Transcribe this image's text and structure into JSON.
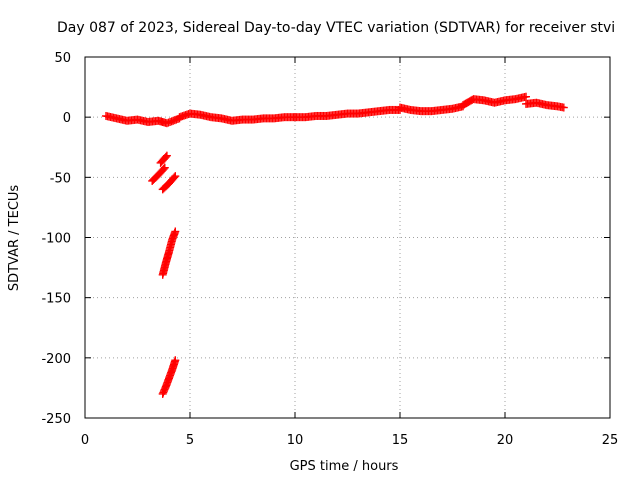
{
  "chart_data": {
    "type": "scatter",
    "title": "Day 087 of 2023, Sidereal Day-to-day VTEC variation (SDTVAR) for receiver stvi",
    "xlabel": "GPS time / hours",
    "ylabel": "SDTVAR / TECUs",
    "xlim": [
      0,
      25
    ],
    "ylim": [
      -250,
      50
    ],
    "x_ticks": [
      0,
      5,
      10,
      15,
      20,
      25
    ],
    "y_ticks": [
      50,
      0,
      -50,
      -100,
      -150,
      -200,
      -250
    ],
    "x_tick_labels": [
      "0",
      "5",
      "10",
      "15",
      "20",
      "25"
    ],
    "y_tick_labels": [
      "50",
      "0",
      "-50",
      "-100",
      "-150",
      "-200",
      "-250"
    ],
    "grid": true,
    "marker": "plus",
    "color": "#ff0000",
    "series": [
      {
        "segments": [
          {
            "x": [
              1.0,
              1.5,
              2.0,
              2.5,
              3.0,
              3.5,
              3.9,
              4.2,
              4.5
            ],
            "y": [
              1,
              -1,
              -3,
              -2,
              -4,
              -3,
              -5,
              -3,
              -1
            ]
          },
          {
            "x": [
              4.5,
              5.0,
              5.5,
              6.0,
              6.5,
              7.0,
              7.5,
              8.0,
              8.5,
              9.0,
              9.5,
              10.0
            ],
            "y": [
              0,
              3,
              2,
              0,
              -1,
              -3,
              -2,
              -2,
              -1,
              -1,
              0,
              0
            ]
          },
          {
            "x": [
              10.0,
              10.5,
              11.0,
              11.5,
              12.0,
              12.5,
              13.0,
              13.5,
              14.0,
              14.5,
              15.0
            ],
            "y": [
              0,
              0,
              1,
              1,
              2,
              3,
              3,
              4,
              5,
              6,
              6
            ]
          },
          {
            "x": [
              15.0,
              15.5,
              16.0,
              16.5,
              17.0,
              17.5,
              18.0
            ],
            "y": [
              8,
              6,
              5,
              5,
              6,
              7,
              9
            ]
          },
          {
            "x": [
              18.0,
              18.5,
              19.0,
              19.5,
              20.0,
              20.5,
              21.0
            ],
            "y": [
              10,
              15,
              14,
              12,
              14,
              15,
              17
            ]
          },
          {
            "x": [
              21.0,
              21.5,
              22.0,
              22.5,
              22.8
            ],
            "y": [
              11,
              12,
              10,
              9,
              8
            ]
          },
          {
            "x": [
              3.2,
              3.6,
              3.8
            ],
            "y": [
              -53,
              -46,
              -42
            ]
          },
          {
            "x": [
              3.6,
              3.9
            ],
            "y": [
              -38,
              -32
            ]
          },
          {
            "x": [
              3.7,
              4.0,
              4.3
            ],
            "y": [
              -60,
              -55,
              -49
            ]
          },
          {
            "x": [
              3.7,
              3.85,
              4.0,
              4.15,
              4.3
            ],
            "y": [
              -131,
              -121,
              -112,
              -102,
              -95
            ]
          },
          {
            "x": [
              3.7,
              3.85,
              4.0,
              4.15,
              4.3
            ],
            "y": [
              -230,
              -224,
              -217,
              -210,
              -202
            ]
          }
        ]
      }
    ]
  }
}
